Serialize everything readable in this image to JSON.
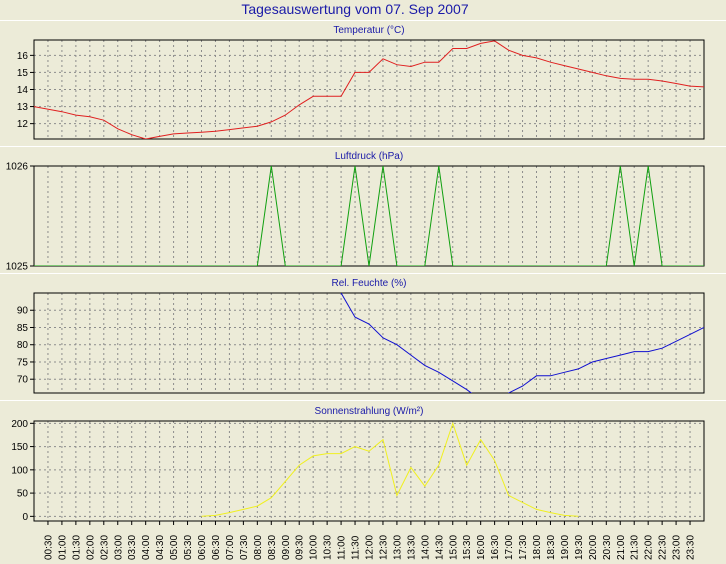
{
  "colors": {
    "background": "#ecebd8",
    "plot_background": "#ecebd8",
    "grid": "#8c8c8c",
    "title": "#1a1aa8",
    "temperature": "#e02020",
    "pressure": "#10a010",
    "humidity": "#1010d0",
    "radiation": "#f0f020"
  },
  "title": "Tagesauswertung vom 07. Sep 2007",
  "x_ticks": [
    "00:30",
    "01:00",
    "01:30",
    "02:00",
    "02:30",
    "03:00",
    "03:30",
    "04:00",
    "04:30",
    "05:00",
    "05:30",
    "06:00",
    "06:30",
    "07:00",
    "07:30",
    "08:00",
    "08:30",
    "09:00",
    "09:30",
    "10:00",
    "10:30",
    "11:00",
    "11:30",
    "12:00",
    "12:30",
    "13:00",
    "13:30",
    "14:00",
    "14:30",
    "15:00",
    "15:30",
    "16:00",
    "16:30",
    "17:00",
    "17:30",
    "18:00",
    "18:30",
    "19:00",
    "19:30",
    "20:00",
    "20:30",
    "21:00",
    "21:30",
    "22:00",
    "22:30",
    "23:00",
    "23:30"
  ],
  "chart_data": [
    {
      "type": "line",
      "title": "Temperatur (°C)",
      "xlim": [
        0,
        24
      ],
      "ylim": [
        11.1,
        16.9
      ],
      "yticks": [
        12,
        13,
        14,
        15,
        16
      ],
      "grid": true,
      "series": [
        {
          "color_key": "temperature",
          "x": [
            0,
            1,
            1.5,
            2,
            2.5,
            3,
            3.5,
            4,
            4.5,
            5,
            5.5,
            6,
            6.5,
            7,
            7.5,
            8,
            8.5,
            9,
            9.5,
            10,
            10.5,
            11,
            11.5,
            12,
            12.5,
            13,
            13.5,
            14,
            14.5,
            15,
            15.5,
            16,
            16.5,
            17,
            17.5,
            18,
            18.5,
            19,
            19.5,
            20,
            20.5,
            21,
            21.5,
            22,
            22.5,
            23,
            23.5,
            24
          ],
          "values": [
            13.0,
            12.7,
            12.5,
            12.4,
            12.2,
            11.7,
            11.35,
            11.1,
            11.25,
            11.4,
            11.45,
            11.5,
            11.55,
            11.65,
            11.75,
            11.85,
            12.1,
            12.5,
            13.1,
            13.6,
            13.6,
            13.6,
            15.0,
            15.0,
            15.8,
            15.45,
            15.35,
            15.6,
            15.6,
            16.4,
            16.4,
            16.7,
            16.85,
            16.3,
            16.0,
            15.85,
            15.6,
            15.4,
            15.2,
            15.0,
            14.8,
            14.65,
            14.6,
            14.6,
            14.5,
            14.35,
            14.2,
            14.15
          ]
        }
      ]
    },
    {
      "type": "line",
      "title": "Luftdruck (hPa)",
      "xlim": [
        0,
        24
      ],
      "ylim": [
        1025,
        1026
      ],
      "yticks": [
        1025,
        1026
      ],
      "grid": true,
      "series": [
        {
          "color_key": "pressure",
          "x": [
            0,
            8,
            8.5,
            9,
            11,
            11.5,
            12,
            12.5,
            13,
            14,
            14.5,
            15,
            20.5,
            21,
            21.5,
            22,
            22.5,
            23,
            24
          ],
          "values": [
            1025,
            1025,
            1026,
            1025,
            1025,
            1026,
            1025,
            1026,
            1025,
            1025,
            1026,
            1025,
            1025,
            1026,
            1025,
            1026,
            1025,
            1025,
            1025
          ]
        }
      ]
    },
    {
      "type": "line",
      "title": "Rel. Feuchte (%)",
      "xlim": [
        0,
        24
      ],
      "ylim": [
        66,
        95
      ],
      "yticks": [
        70,
        75,
        80,
        85,
        90
      ],
      "grid": true,
      "series": [
        {
          "color_key": "humidity",
          "x": [
            11,
            11.5,
            12,
            12.5,
            13,
            13.5,
            14,
            14.5,
            15,
            15.5,
            16,
            16.5,
            17,
            17.5,
            18,
            18.5,
            19,
            19.5,
            20,
            20.5,
            21,
            21.5,
            22,
            22.5,
            23,
            23.5,
            24
          ],
          "values": [
            95,
            88,
            86,
            82,
            80,
            77,
            74,
            72,
            69.5,
            67,
            64,
            62,
            66,
            68,
            71,
            71,
            72,
            73,
            75,
            76,
            77,
            78,
            78,
            79,
            81,
            83,
            85
          ]
        }
      ]
    },
    {
      "type": "line",
      "title": "Sonnenstrahlung (W/m²)",
      "xlim": [
        0,
        24
      ],
      "ylim": [
        -10,
        205
      ],
      "yticks": [
        0,
        50,
        100,
        150,
        200
      ],
      "grid": true,
      "series": [
        {
          "color_key": "radiation",
          "x": [
            6,
            6.5,
            7,
            7.5,
            8,
            8.5,
            9,
            9.5,
            10,
            10.5,
            11,
            11.5,
            12,
            12.5,
            13,
            13.5,
            14,
            14.5,
            15,
            15.5,
            16,
            16.5,
            17,
            17.5,
            18,
            18.5,
            19,
            19.5
          ],
          "values": [
            0,
            2,
            8,
            15,
            22,
            40,
            75,
            110,
            130,
            135,
            135,
            150,
            140,
            165,
            45,
            105,
            65,
            110,
            200,
            110,
            165,
            120,
            45,
            30,
            15,
            8,
            2,
            0
          ]
        }
      ]
    }
  ]
}
